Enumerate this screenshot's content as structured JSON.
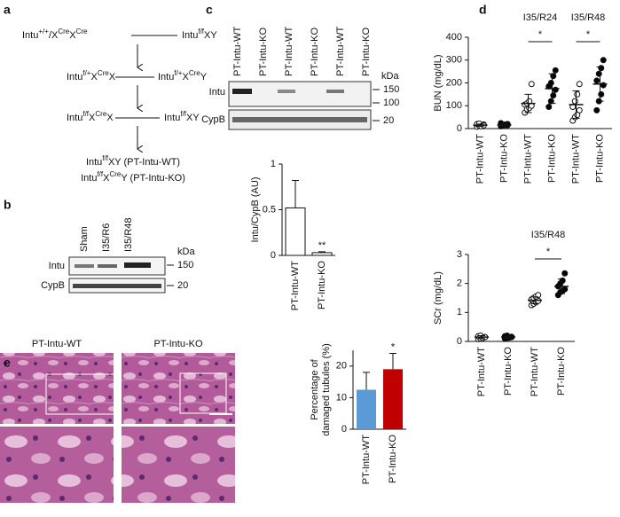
{
  "panel_labels": [
    "a",
    "b",
    "c",
    "d",
    "e"
  ],
  "diagram": {
    "nodes": [
      [
        "Intu",
        "+/+",
        "/X",
        "Cre",
        "X",
        "Cre"
      ],
      [
        "Intu",
        "f/f",
        "XY"
      ],
      [
        "Intu",
        "f/+",
        "X",
        "Cre",
        "X"
      ],
      [
        "Intu",
        "f/+",
        "X",
        "Cre",
        "Y"
      ],
      [
        "Intu",
        "f/f",
        "X",
        "Cre",
        "X"
      ],
      [
        "Intu",
        "f/f",
        "XY"
      ],
      [
        "Intu",
        "f/f",
        "XY (PT-Intu-WT)"
      ],
      [
        "Intu",
        "f/f",
        "X",
        "Cre",
        "Y (PT-Intu-KO)"
      ]
    ]
  },
  "blot_b": {
    "lanes": [
      "Sham",
      "I35/R6",
      "I35/R48"
    ],
    "rows": [
      "Intu",
      "CypB"
    ],
    "unit": "kDa",
    "markers": [
      "150",
      "20"
    ]
  },
  "blot_c": {
    "lanes": [
      "PT-Intu-WT",
      "PT-Intu-KO",
      "PT-Intu-WT",
      "PT-Intu-KO",
      "PT-Intu-WT",
      "PT-Intu-KO"
    ],
    "rows": [
      "Intu",
      "CypB"
    ],
    "unit": "kDa",
    "markers": [
      "150",
      "100",
      "20"
    ]
  },
  "images_e": {
    "titles": [
      "PT-Intu-WT",
      "PT-Intu-KO"
    ]
  },
  "chart_data": [
    {
      "type": "bar",
      "ylabel": [
        "Intu/CypB (AU)"
      ],
      "categories": [
        "PT-Intu-WT",
        "PT-Intu-KO"
      ],
      "values": [
        0.52,
        0.03
      ],
      "errors": [
        0.3,
        0.01
      ],
      "colors": [
        "#ffffff",
        "#ffffff"
      ],
      "ylim": [
        0,
        1
      ],
      "yticks": [
        0,
        0.5,
        1
      ],
      "annotation": "**"
    },
    {
      "type": "dot",
      "ylabel": "BUN (mg/dL)",
      "categories": [
        "PT-Intu-WT",
        "PT-Intu-KO",
        "PT-Intu-WT",
        "PT-Intu-KO",
        "PT-Intu-WT",
        "PT-Intu-KO"
      ],
      "marker_fill": [
        "#ffffff",
        "#000000",
        "#ffffff",
        "#000000",
        "#ffffff",
        "#000000"
      ],
      "points": [
        [
          8,
          12,
          15,
          18,
          20,
          22,
          10,
          14
        ],
        [
          10,
          14,
          16,
          20,
          24,
          12,
          18,
          15
        ],
        [
          70,
          85,
          90,
          100,
          105,
          110,
          120,
          195
        ],
        [
          95,
          120,
          145,
          170,
          185,
          200,
          230,
          255
        ],
        [
          35,
          50,
          60,
          80,
          95,
          120,
          150,
          195
        ],
        [
          80,
          120,
          150,
          190,
          210,
          240,
          265,
          300
        ]
      ],
      "means": [
        15,
        16,
        110,
        175,
        105,
        195
      ],
      "sd": [
        5,
        5,
        40,
        65,
        60,
        75
      ],
      "ylim": [
        0,
        400
      ],
      "yticks": [
        0,
        100,
        200,
        300,
        400
      ],
      "groups": [
        "I35/R24",
        "I35/R48"
      ],
      "annotations": [
        "*",
        "*"
      ]
    },
    {
      "type": "dot",
      "ylabel": "SCr (mg/dL)",
      "categories": [
        "PT-Intu-WT",
        "PT-Intu-KO",
        "PT-Intu-WT",
        "PT-Intu-KO"
      ],
      "marker_fill": [
        "#ffffff",
        "#000000",
        "#ffffff",
        "#000000"
      ],
      "points": [
        [
          0.08,
          0.1,
          0.12,
          0.15,
          0.18,
          0.2,
          0.12,
          0.15
        ],
        [
          0.1,
          0.12,
          0.14,
          0.16,
          0.18,
          0.2,
          0.13,
          0.15
        ],
        [
          1.25,
          1.3,
          1.35,
          1.4,
          1.45,
          1.5,
          1.55,
          1.6
        ],
        [
          1.6,
          1.7,
          1.75,
          1.8,
          1.9,
          2.0,
          2.1,
          2.35
        ]
      ],
      "means": [
        0.15,
        0.15,
        1.42,
        1.9
      ],
      "sd": [
        0.05,
        0.04,
        0.12,
        0.25
      ],
      "ylim": [
        0,
        3
      ],
      "yticks": [
        0,
        1,
        2,
        3
      ],
      "groups": [
        "I35/R48"
      ],
      "annotations": [
        "*"
      ]
    },
    {
      "type": "bar",
      "ylabel": [
        "Percentage of",
        "damaged tubules (%)"
      ],
      "categories": [
        "PT-Intu-WT",
        "PT-Intu-KO"
      ],
      "values": [
        12.5,
        19
      ],
      "errors": [
        5.5,
        5
      ],
      "colors": [
        "#5b9bd5",
        "#c00000"
      ],
      "ylim": [
        0,
        25
      ],
      "yticks": [
        0,
        10,
        20
      ],
      "annotation": "*"
    }
  ]
}
